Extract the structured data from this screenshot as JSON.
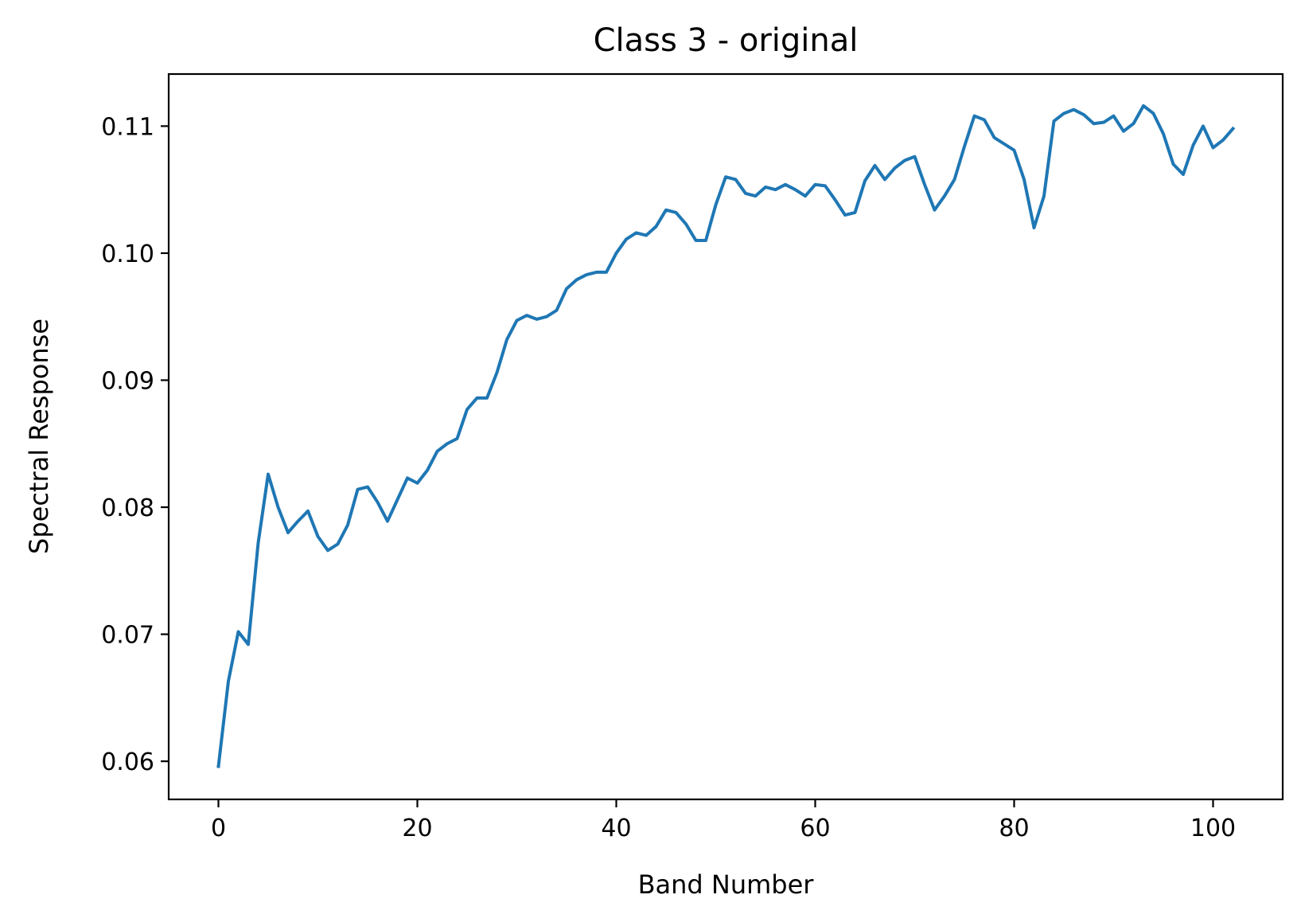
{
  "chart_data": {
    "type": "line",
    "title": "Class 3 - original",
    "xlabel": "Band Number",
    "ylabel": "Spectral Response",
    "xlim": [
      -5,
      107
    ],
    "ylim": [
      0.057,
      0.1141
    ],
    "xticks": [
      0,
      20,
      40,
      60,
      80,
      100
    ],
    "xtick_labels": [
      "0",
      "20",
      "40",
      "60",
      "80",
      "100"
    ],
    "yticks": [
      0.06,
      0.07,
      0.08,
      0.09,
      0.1,
      0.11
    ],
    "ytick_labels": [
      "0.06",
      "0.07",
      "0.08",
      "0.09",
      "0.10",
      "0.11"
    ],
    "grid": false,
    "line_color": "#1f77b4",
    "series": [
      {
        "x": [
          0,
          1,
          2,
          3,
          4,
          5,
          6,
          7,
          8,
          9,
          10,
          11,
          12,
          13,
          14,
          15,
          16,
          17,
          18,
          19,
          20,
          21,
          22,
          23,
          24,
          25,
          26,
          27,
          28,
          29,
          30,
          31,
          32,
          33,
          34,
          35,
          36,
          37,
          38,
          39,
          40,
          41,
          42,
          43,
          44,
          45,
          46,
          47,
          48,
          49,
          50,
          51,
          52,
          53,
          54,
          55,
          56,
          57,
          58,
          59,
          60,
          61,
          62,
          63,
          64,
          65,
          66,
          67,
          68,
          69,
          70,
          71,
          72,
          73,
          74,
          75,
          76,
          77,
          78,
          79,
          80,
          81,
          82,
          83,
          84,
          85,
          86,
          87,
          88,
          89,
          90,
          91,
          92,
          93,
          94,
          95,
          96,
          97,
          98,
          99,
          100,
          101,
          102
        ],
        "values": [
          0.0596,
          0.0663,
          0.0702,
          0.0692,
          0.0772,
          0.0826,
          0.08,
          0.078,
          0.0789,
          0.0797,
          0.0777,
          0.0766,
          0.0771,
          0.0786,
          0.0814,
          0.0816,
          0.0804,
          0.0789,
          0.0806,
          0.0823,
          0.0819,
          0.0829,
          0.0844,
          0.085,
          0.0854,
          0.0877,
          0.0886,
          0.0886,
          0.0906,
          0.0932,
          0.0947,
          0.0951,
          0.0948,
          0.095,
          0.0955,
          0.0972,
          0.0979,
          0.0983,
          0.0985,
          0.0985,
          0.1,
          0.1011,
          0.1016,
          0.1014,
          0.1021,
          0.1034,
          0.1032,
          0.1023,
          0.101,
          0.101,
          0.1038,
          0.106,
          0.1058,
          0.1047,
          0.1045,
          0.1052,
          0.105,
          0.1054,
          0.105,
          0.1045,
          0.1054,
          0.1053,
          0.1042,
          0.103,
          0.1032,
          0.1057,
          0.1069,
          0.1058,
          0.1067,
          0.1073,
          0.1076,
          0.1054,
          0.1034,
          0.1045,
          0.1058,
          0.1084,
          0.1108,
          0.1105,
          0.1091,
          0.1086,
          0.1081,
          0.1058,
          0.102,
          0.1045,
          0.1104,
          0.111,
          0.1113,
          0.1109,
          0.1102,
          0.1103,
          0.1108,
          0.1096,
          0.1102,
          0.1116,
          0.111,
          0.1094,
          0.107,
          0.1062,
          0.1085,
          0.11,
          0.1083,
          0.1089,
          0.1098
        ]
      }
    ]
  }
}
